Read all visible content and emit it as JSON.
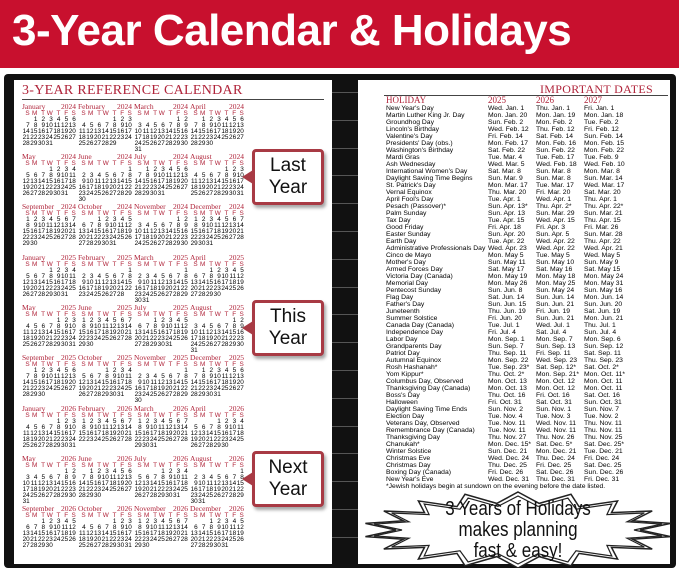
{
  "banner": {
    "title": "3-Year Calendar & Holidays",
    "color": "#c8102e"
  },
  "calendar": {
    "title": "3-YEAR REFERENCE CALENDAR",
    "years": [
      2024,
      2025,
      2026
    ],
    "months": [
      "January",
      "February",
      "March",
      "April",
      "May",
      "June",
      "July",
      "August",
      "September",
      "October",
      "November",
      "December"
    ],
    "weekdays": [
      "S",
      "M",
      "T",
      "W",
      "T",
      "F",
      "S"
    ],
    "accent_color": "#b0243a"
  },
  "callouts": {
    "last": "Last Year",
    "this": "This Year",
    "next": "Next Year"
  },
  "holidays": {
    "title": "IMPORTANT DATES",
    "headers": [
      "HOLIDAY",
      "2025",
      "2026",
      "2027"
    ],
    "rows": [
      [
        "New Year's Day",
        "Wed. Jan. 1",
        "Thu. Jan. 1",
        "Fri. Jan. 1"
      ],
      [
        "Martin Luther King Jr. Day",
        "Mon. Jan. 20",
        "Mon. Jan. 19",
        "Mon. Jan. 18"
      ],
      [
        "Groundhog Day",
        "Sun. Feb. 2",
        "Mon. Feb. 2",
        "Tue. Feb. 2"
      ],
      [
        "Lincoln's Birthday",
        "Wed. Feb. 12",
        "Thu. Feb. 12",
        "Fri. Feb. 12"
      ],
      [
        "Valentine's Day",
        "Fri. Feb. 14",
        "Sat. Feb. 14",
        "Sun. Feb. 14"
      ],
      [
        "Presidents' Day (obs.)",
        "Mon. Feb. 17",
        "Mon. Feb. 16",
        "Mon. Feb. 15"
      ],
      [
        "Washington's Birthday",
        "Sat. Feb. 22",
        "Sun. Feb. 22",
        "Mon. Feb. 22"
      ],
      [
        "Mardi Gras",
        "Tue. Mar. 4",
        "Tue. Feb. 17",
        "Tue. Feb. 9"
      ],
      [
        "Ash Wednesday",
        "Wed. Mar. 5",
        "Wed. Feb. 18",
        "Wed. Feb. 10"
      ],
      [
        "International Women's Day",
        "Sat. Mar. 8",
        "Sun. Mar. 8",
        "Mon. Mar. 8"
      ],
      [
        "Daylight Saving Time Begins",
        "Sun. Mar. 9",
        "Sun. Mar. 8",
        "Sun. Mar. 14"
      ],
      [
        "St. Patrick's Day",
        "Mon. Mar. 17",
        "Tue. Mar. 17",
        "Wed. Mar. 17"
      ],
      [
        "Vernal Equinox",
        "Thu. Mar. 20",
        "Fri. Mar. 20",
        "Sat. Mar. 20"
      ],
      [
        "April Fool's Day",
        "Tue. Apr. 1",
        "Wed. Apr. 1",
        "Thu. Apr. 1"
      ],
      [
        "Pesach (Passover)*",
        "Sun. Apr. 13*",
        "Thu. Apr. 2*",
        "Thu. Apr. 22*"
      ],
      [
        "Palm Sunday",
        "Sun. Apr. 13",
        "Sun. Mar. 29",
        "Sun. Mar. 21"
      ],
      [
        "Tax Day",
        "Tue. Apr. 15",
        "Wed. Apr. 15",
        "Thu. Apr. 15"
      ],
      [
        "Good Friday",
        "Fri. Apr. 18",
        "Fri. Apr. 3",
        "Fri. Mar. 26"
      ],
      [
        "Easter Sunday",
        "Sun. Apr. 20",
        "Sun. Apr. 5",
        "Sun. Mar. 28"
      ],
      [
        "Earth Day",
        "Tue. Apr. 22",
        "Wed. Apr. 22",
        "Thu. Apr. 22"
      ],
      [
        "Administrative Professionals Day",
        "Wed. Apr. 23",
        "Wed. Apr. 22",
        "Wed. Apr. 21"
      ],
      [
        "Cinco de Mayo",
        "Mon. May 5",
        "Tue. May 5",
        "Wed. May 5"
      ],
      [
        "Mother's Day",
        "Sun. May 11",
        "Sun. May 10",
        "Sun. May 9"
      ],
      [
        "Armed Forces Day",
        "Sat. May 17",
        "Sat. May 16",
        "Sat. May 15"
      ],
      [
        "Victoria Day (Canada)",
        "Mon. May 19",
        "Mon. May 18",
        "Mon. May 24"
      ],
      [
        "Memorial Day",
        "Mon. May 26",
        "Mon. May 25",
        "Mon. May 31"
      ],
      [
        "Pentecost Sunday",
        "Sun. Jun. 8",
        "Sun. May 24",
        "Sun. May 16"
      ],
      [
        "Flag Day",
        "Sat. Jun. 14",
        "Sun. Jun. 14",
        "Mon. Jun. 14"
      ],
      [
        "Father's Day",
        "Sun. Jun. 15",
        "Sun. Jun. 21",
        "Sun. Jun. 20"
      ],
      [
        "Juneteenth",
        "Thu. Jun. 19",
        "Fri. Jun. 19",
        "Sat. Jun. 19"
      ],
      [
        "Summer Solstice",
        "Fri. Jun. 20",
        "Sun. Jun. 21",
        "Mon. Jun. 21"
      ],
      [
        "Canada Day (Canada)",
        "Tue. Jul. 1",
        "Wed. Jul. 1",
        "Thu. Jul. 1"
      ],
      [
        "Independence Day",
        "Fri. Jul. 4",
        "Sat. Jul. 4",
        "Sun. Jul. 4"
      ],
      [
        "Labor Day",
        "Mon. Sep. 1",
        "Mon. Sep. 7",
        "Mon. Sep. 6"
      ],
      [
        "Grandparents Day",
        "Sun. Sep. 7",
        "Sun. Sep. 13",
        "Sun. Sep. 12"
      ],
      [
        "Patriot Day",
        "Thu. Sep. 11",
        "Fri. Sep. 11",
        "Sat. Sep. 11"
      ],
      [
        "Autumnal Equinox",
        "Mon. Sep. 22",
        "Wed. Sep. 23",
        "Thu. Sep. 23"
      ],
      [
        "Rosh Hashanah*",
        "Tue. Sep. 23*",
        "Sat. Sep. 12*",
        "Sat. Oct. 2*"
      ],
      [
        "Yom Kippur*",
        "Thu. Oct. 2*",
        "Mon. Sep. 21*",
        "Mon. Oct. 11*"
      ],
      [
        "Columbus Day, Observed",
        "Mon. Oct. 13",
        "Mon. Oct. 12",
        "Mon. Oct. 11"
      ],
      [
        "Thanksgiving Day (Canada)",
        "Mon. Oct. 13",
        "Mon. Oct. 12",
        "Mon. Oct. 11"
      ],
      [
        "Boss's Day",
        "Thu. Oct. 16",
        "Fri. Oct. 16",
        "Sat. Oct. 16"
      ],
      [
        "Halloween",
        "Fri. Oct. 31",
        "Sat. Oct. 31",
        "Sun. Oct. 31"
      ],
      [
        "Daylight Saving Time Ends",
        "Sun. Nov. 2",
        "Sun. Nov. 1",
        "Sun. Nov. 7"
      ],
      [
        "Election Day",
        "Tue. Nov. 4",
        "Tue. Nov. 3",
        "Tue. Nov. 2"
      ],
      [
        "Veterans Day, Observed",
        "Tue. Nov. 11",
        "Wed. Nov. 11",
        "Thu. Nov. 11"
      ],
      [
        "Remembrance Day (Canada)",
        "Tue. Nov. 11",
        "Wed. Nov. 11",
        "Thu. Nov. 11"
      ],
      [
        "Thanksgiving Day",
        "Thu. Nov. 27",
        "Thu. Nov. 26",
        "Thu. Nov. 25"
      ],
      [
        "Chanukah*",
        "Mon. Dec. 15*",
        "Sat. Dec. 5*",
        "Sat. Dec. 25*"
      ],
      [
        "Winter Solstice",
        "Sun. Dec. 21",
        "Mon. Dec. 21",
        "Tue. Dec. 21"
      ],
      [
        "Christmas Eve",
        "Wed. Dec. 24",
        "Thu. Dec. 24",
        "Fri. Dec. 24"
      ],
      [
        "Christmas Day",
        "Thu. Dec. 25",
        "Fri. Dec. 25",
        "Sat. Dec. 25"
      ],
      [
        "Boxing Day (Canada)",
        "Fri. Dec. 26",
        "Sat. Dec. 26",
        "Sun. Dec. 26"
      ],
      [
        "New Year's Eve",
        "Wed. Dec. 31",
        "Thu. Dec. 31",
        "Fri. Dec. 31"
      ]
    ],
    "footnote": "*Jewish holidays begin at sundown on the evening before the date listed."
  },
  "starburst": {
    "line1": "3 Years of Holidays",
    "line2": "makes planning",
    "line3": "fast & easy!"
  }
}
